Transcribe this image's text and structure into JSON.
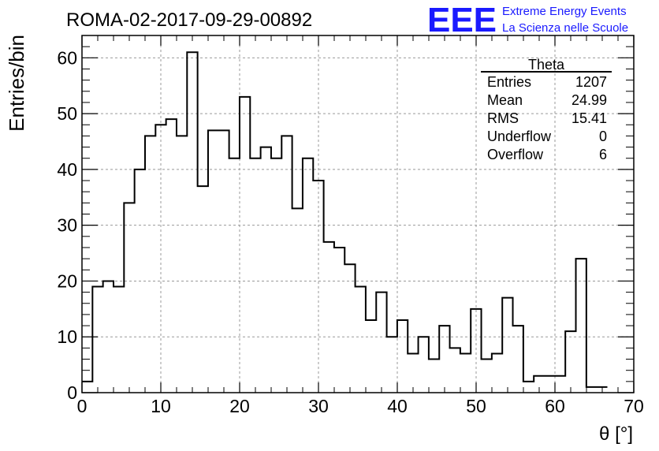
{
  "header": {
    "run_title": "ROMA-02-2017-09-29-00892",
    "logo_letters": "EEE",
    "logo_line1": "Extreme Energy Events",
    "logo_line2": "La Scienza nelle Scuole",
    "logo_color": "#1a1aff"
  },
  "stats": {
    "title": "Theta",
    "rows": [
      {
        "label": "Entries",
        "value": "1207"
      },
      {
        "label": "Mean",
        "value": "24.99"
      },
      {
        "label": "RMS",
        "value": "15.41"
      },
      {
        "label": "Underflow",
        "value": "0"
      },
      {
        "label": "Overflow",
        "value": "6"
      }
    ]
  },
  "chart_data": {
    "type": "histogram",
    "title": "ROMA-02-2017-09-29-00892",
    "xlabel": "θ [°]",
    "ylabel": "Entries/bin",
    "xlim": [
      0,
      70
    ],
    "ylim": [
      0,
      64
    ],
    "x_ticks": [
      0,
      10,
      20,
      30,
      40,
      50,
      60,
      70
    ],
    "y_ticks": [
      0,
      10,
      20,
      30,
      40,
      50,
      60
    ],
    "grid": true,
    "bin_width": 1.333,
    "bin_edges_start": 0,
    "values": [
      2,
      19,
      20,
      19,
      34,
      40,
      46,
      48,
      49,
      46,
      61,
      37,
      47,
      47,
      42,
      53,
      42,
      44,
      42,
      46,
      33,
      42,
      38,
      27,
      26,
      23,
      19,
      13,
      18,
      10,
      13,
      7,
      10,
      6,
      12,
      8,
      7,
      15,
      6,
      7,
      17,
      12,
      2,
      3,
      3,
      3,
      11,
      24,
      1,
      1
    ],
    "line_color": "#000000"
  }
}
